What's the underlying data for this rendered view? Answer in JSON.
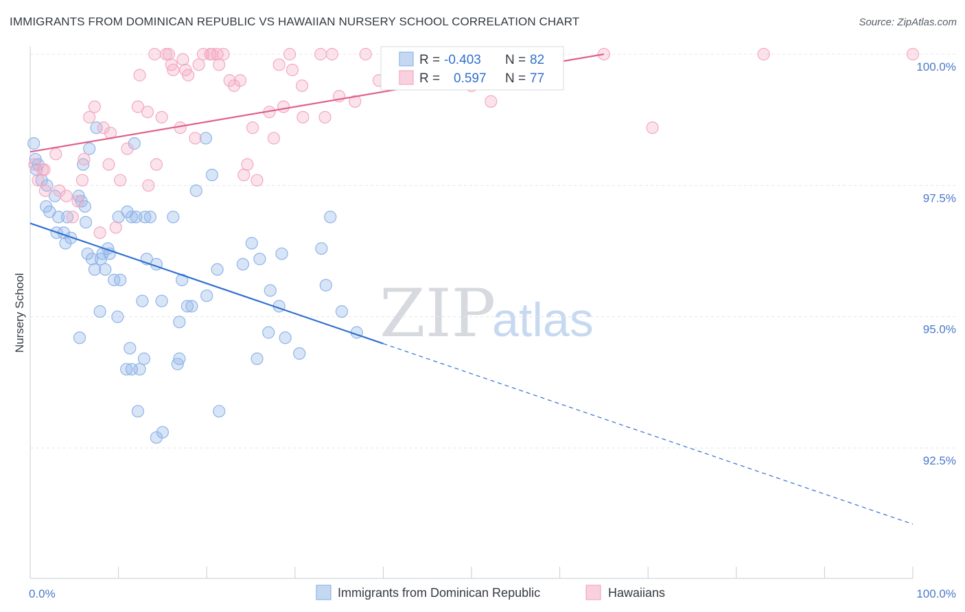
{
  "title": "IMMIGRANTS FROM DOMINICAN REPUBLIC VS HAWAIIAN NURSERY SCHOOL CORRELATION CHART",
  "source": "Source: ZipAtlas.com",
  "watermark": {
    "zip": "ZIP",
    "atlas": "atlas"
  },
  "chart_data": {
    "type": "scatter",
    "xlabel": "",
    "ylabel": "Nursery School",
    "xlim": [
      0,
      100
    ],
    "ylim": [
      90.3,
      100.1
    ],
    "x_tick_labels": [
      {
        "value": 0,
        "label": "0.0%"
      },
      {
        "value": 100,
        "label": "100.0%"
      }
    ],
    "y_ticks": [
      {
        "value": 100.0,
        "label": "100.0%"
      },
      {
        "value": 97.5,
        "label": "97.5%"
      },
      {
        "value": 95.0,
        "label": "95.0%"
      },
      {
        "value": 92.5,
        "label": "92.5%"
      }
    ],
    "grid": true,
    "legend_position": "top-center",
    "series": [
      {
        "name": "Immigrants from Dominican Republic",
        "color": "#8fb4e8",
        "line_color": "#2f6fd0",
        "stats": {
          "r_label": "R =",
          "r": "-0.403",
          "n_label": "N =",
          "n": "82"
        },
        "trend": {
          "x0": 0,
          "y0": 96.78,
          "x_solid_end": 40,
          "x1": 100,
          "y1": 91.05
        },
        "points": [
          [
            0.4,
            98.3
          ],
          [
            0.6,
            98.0
          ],
          [
            0.7,
            97.8
          ],
          [
            0.9,
            97.9
          ],
          [
            1.3,
            97.6
          ],
          [
            1.9,
            97.5
          ],
          [
            1.8,
            97.1
          ],
          [
            2.2,
            97.0
          ],
          [
            2.8,
            97.3
          ],
          [
            3.0,
            96.6
          ],
          [
            3.2,
            96.9
          ],
          [
            3.8,
            96.6
          ],
          [
            4.0,
            96.4
          ],
          [
            4.2,
            96.9
          ],
          [
            4.6,
            96.5
          ],
          [
            5.5,
            97.3
          ],
          [
            5.8,
            97.2
          ],
          [
            6.0,
            97.9
          ],
          [
            6.2,
            97.1
          ],
          [
            6.3,
            96.8
          ],
          [
            6.7,
            98.2
          ],
          [
            7.5,
            98.6
          ],
          [
            6.5,
            96.2
          ],
          [
            7.0,
            96.1
          ],
          [
            7.3,
            95.9
          ],
          [
            8.0,
            96.1
          ],
          [
            8.2,
            96.2
          ],
          [
            8.5,
            95.9
          ],
          [
            8.8,
            96.3
          ],
          [
            9.0,
            96.2
          ],
          [
            9.5,
            95.7
          ],
          [
            10.2,
            95.7
          ],
          [
            10.0,
            96.9
          ],
          [
            11.0,
            97.0
          ],
          [
            11.5,
            96.9
          ],
          [
            12.0,
            96.9
          ],
          [
            11.8,
            98.3
          ],
          [
            13.6,
            96.9
          ],
          [
            13.2,
            96.1
          ],
          [
            14.3,
            96.0
          ],
          [
            16.2,
            96.9
          ],
          [
            17.2,
            95.7
          ],
          [
            18.8,
            97.4
          ],
          [
            19.9,
            98.4
          ],
          [
            20.6,
            97.7
          ],
          [
            21.2,
            95.9
          ],
          [
            24.1,
            96.0
          ],
          [
            25.1,
            96.4
          ],
          [
            26.0,
            96.1
          ],
          [
            27.2,
            95.5
          ],
          [
            28.5,
            96.2
          ],
          [
            28.2,
            95.2
          ],
          [
            33.0,
            96.3
          ],
          [
            33.5,
            95.6
          ],
          [
            34.0,
            96.9
          ],
          [
            35.3,
            95.1
          ],
          [
            37.0,
            94.7
          ],
          [
            7.9,
            95.1
          ],
          [
            9.9,
            95.0
          ],
          [
            12.7,
            95.3
          ],
          [
            14.9,
            95.3
          ],
          [
            17.8,
            95.2
          ],
          [
            16.9,
            94.9
          ],
          [
            27.0,
            94.7
          ],
          [
            28.9,
            94.6
          ],
          [
            30.5,
            94.3
          ],
          [
            25.7,
            94.2
          ],
          [
            5.6,
            94.6
          ],
          [
            11.3,
            94.4
          ],
          [
            10.9,
            94.0
          ],
          [
            11.5,
            94.0
          ],
          [
            12.4,
            94.0
          ],
          [
            12.9,
            94.2
          ],
          [
            16.7,
            94.1
          ],
          [
            16.9,
            94.2
          ],
          [
            12.2,
            93.2
          ],
          [
            21.4,
            93.2
          ],
          [
            14.3,
            92.7
          ],
          [
            15.0,
            92.8
          ],
          [
            20.0,
            95.4
          ],
          [
            18.3,
            95.2
          ],
          [
            13.0,
            96.9
          ]
        ]
      },
      {
        "name": "Hawaiians",
        "color": "#f4a8c0",
        "line_color": "#e0608a",
        "stats": {
          "r_label": "R =",
          "r": "0.597",
          "n_label": "N =",
          "n": "77"
        },
        "trend": {
          "x0": 0,
          "y0": 98.14,
          "x1": 65,
          "y1": 100.0
        },
        "points": [
          [
            0.5,
            97.9
          ],
          [
            0.9,
            97.6
          ],
          [
            1.4,
            97.8
          ],
          [
            1.6,
            97.8
          ],
          [
            1.7,
            97.4
          ],
          [
            2.9,
            98.1
          ],
          [
            3.3,
            97.4
          ],
          [
            4.1,
            97.3
          ],
          [
            4.8,
            96.9
          ],
          [
            5.4,
            97.2
          ],
          [
            5.9,
            97.6
          ],
          [
            6.1,
            98.0
          ],
          [
            6.7,
            98.8
          ],
          [
            7.3,
            99.0
          ],
          [
            7.9,
            96.6
          ],
          [
            8.3,
            98.6
          ],
          [
            8.9,
            97.9
          ],
          [
            9.1,
            98.5
          ],
          [
            9.7,
            96.7
          ],
          [
            10.2,
            97.6
          ],
          [
            11.0,
            98.2
          ],
          [
            12.2,
            99.0
          ],
          [
            12.4,
            99.6
          ],
          [
            13.3,
            98.9
          ],
          [
            13.4,
            97.5
          ],
          [
            14.1,
            100.0
          ],
          [
            14.3,
            97.9
          ],
          [
            14.9,
            98.8
          ],
          [
            15.4,
            100.0
          ],
          [
            15.7,
            100.0
          ],
          [
            16.0,
            99.8
          ],
          [
            16.2,
            99.7
          ],
          [
            17.0,
            98.6
          ],
          [
            17.3,
            99.9
          ],
          [
            17.6,
            99.7
          ],
          [
            17.9,
            99.6
          ],
          [
            18.7,
            98.4
          ],
          [
            19.1,
            99.8
          ],
          [
            19.6,
            100.0
          ],
          [
            20.4,
            100.0
          ],
          [
            20.6,
            100.0
          ],
          [
            21.2,
            100.0
          ],
          [
            21.4,
            99.8
          ],
          [
            21.9,
            100.0
          ],
          [
            22.6,
            99.5
          ],
          [
            23.1,
            99.4
          ],
          [
            23.8,
            99.5
          ],
          [
            24.2,
            97.7
          ],
          [
            24.6,
            97.9
          ],
          [
            25.2,
            98.6
          ],
          [
            25.7,
            97.6
          ],
          [
            27.1,
            98.9
          ],
          [
            27.6,
            98.4
          ],
          [
            28.2,
            99.8
          ],
          [
            28.7,
            99.0
          ],
          [
            29.4,
            100.0
          ],
          [
            29.7,
            99.7
          ],
          [
            30.8,
            99.4
          ],
          [
            30.9,
            98.8
          ],
          [
            32.9,
            100.0
          ],
          [
            33.4,
            98.8
          ],
          [
            34.2,
            100.0
          ],
          [
            35.0,
            99.2
          ],
          [
            36.8,
            99.1
          ],
          [
            38.0,
            100.0
          ],
          [
            39.5,
            99.5
          ],
          [
            41.0,
            99.8
          ],
          [
            43.5,
            99.7
          ],
          [
            45.0,
            100.0
          ],
          [
            48.2,
            100.0
          ],
          [
            50.0,
            99.4
          ],
          [
            52.2,
            99.1
          ],
          [
            58.0,
            100.0
          ],
          [
            65.0,
            100.0
          ],
          [
            70.5,
            98.6
          ],
          [
            83.1,
            100.0
          ],
          [
            100.0,
            100.0
          ]
        ]
      }
    ]
  }
}
